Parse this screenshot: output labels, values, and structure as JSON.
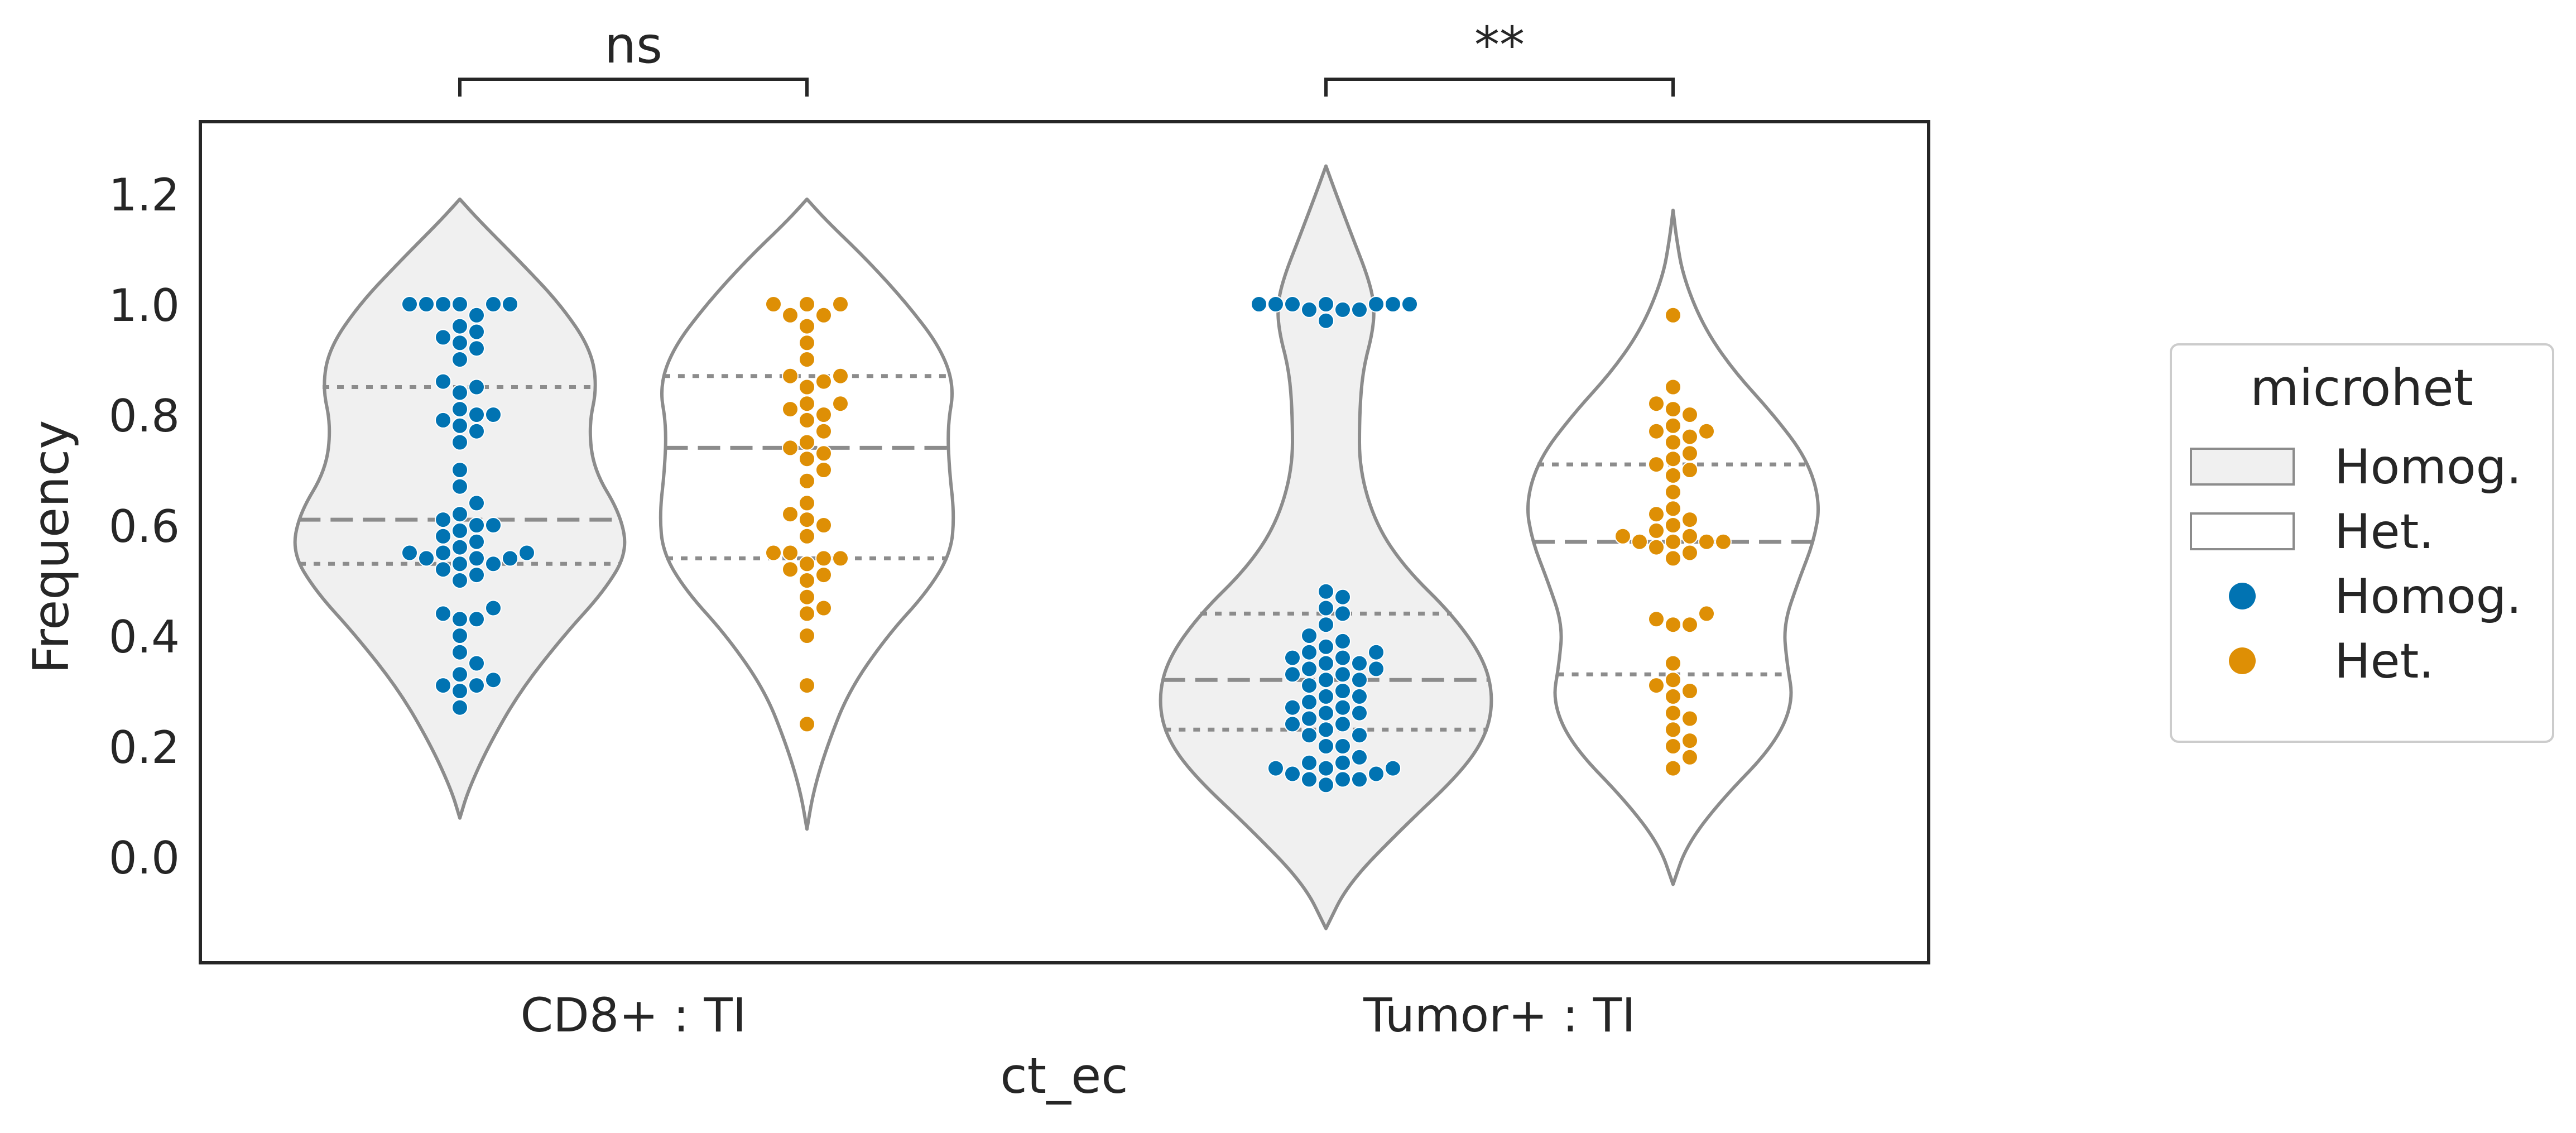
{
  "chart_data": {
    "type": "violin",
    "xlabel": "ct_ec",
    "ylabel": "Frequency",
    "categories": [
      "CD8+ : TI",
      "Tumor+ : TI"
    ],
    "y_ticks": [
      "0.0",
      "0.2",
      "0.4",
      "0.6",
      "0.8",
      "1.0",
      "1.2"
    ],
    "ylim": [
      -0.2,
      1.33
    ],
    "grid": false,
    "legend": {
      "title": "microhet",
      "placement": "right",
      "entries": [
        {
          "label": "Homog.",
          "kind": "patch",
          "fill": "#f0f0f0"
        },
        {
          "label": "Het.",
          "kind": "patch",
          "fill": "#ffffff"
        },
        {
          "label": "Homog.",
          "kind": "marker",
          "color": "#0173b2"
        },
        {
          "label": "Het.",
          "kind": "marker",
          "color": "#de8f05"
        }
      ]
    },
    "significance": [
      {
        "category": "CD8+ : TI",
        "label": "ns"
      },
      {
        "category": "Tumor+ : TI",
        "label": "**"
      }
    ],
    "series": [
      {
        "name": "Homog.",
        "color": "#0173b2",
        "violin_fill": "#f0f0f0",
        "groups": [
          {
            "category": "CD8+ : TI",
            "range": [
              0.07,
              1.19
            ],
            "quartiles": [
              0.53,
              0.61,
              0.85
            ],
            "density": [
              [
                0.07,
                0.0
              ],
              [
                0.12,
                0.05
              ],
              [
                0.2,
                0.17
              ],
              [
                0.3,
                0.36
              ],
              [
                0.4,
                0.62
              ],
              [
                0.48,
                0.86
              ],
              [
                0.55,
                1.0
              ],
              [
                0.62,
                0.96
              ],
              [
                0.7,
                0.8
              ],
              [
                0.78,
                0.77
              ],
              [
                0.85,
                0.82
              ],
              [
                0.92,
                0.78
              ],
              [
                1.0,
                0.6
              ],
              [
                1.08,
                0.35
              ],
              [
                1.15,
                0.12
              ],
              [
                1.19,
                0.0
              ]
            ],
            "points": [
              1.0,
              1.0,
              1.0,
              1.0,
              1.0,
              1.0,
              0.98,
              0.96,
              0.95,
              0.94,
              0.93,
              0.92,
              0.9,
              0.86,
              0.85,
              0.84,
              0.81,
              0.8,
              0.8,
              0.79,
              0.78,
              0.77,
              0.75,
              0.7,
              0.67,
              0.64,
              0.62,
              0.61,
              0.6,
              0.6,
              0.59,
              0.58,
              0.57,
              0.56,
              0.55,
              0.55,
              0.55,
              0.54,
              0.54,
              0.54,
              0.53,
              0.53,
              0.52,
              0.51,
              0.5,
              0.45,
              0.44,
              0.43,
              0.43,
              0.4,
              0.37,
              0.35,
              0.33,
              0.32,
              0.31,
              0.31,
              0.3,
              0.27
            ]
          },
          {
            "category": "Tumor+ : TI",
            "range": [
              -0.13,
              1.25
            ],
            "quartiles": [
              0.23,
              0.32,
              0.44
            ],
            "density": [
              [
                -0.13,
                0.0
              ],
              [
                -0.05,
                0.13
              ],
              [
                0.05,
                0.45
              ],
              [
                0.15,
                0.8
              ],
              [
                0.22,
                0.96
              ],
              [
                0.29,
                1.0
              ],
              [
                0.36,
                0.94
              ],
              [
                0.44,
                0.75
              ],
              [
                0.52,
                0.48
              ],
              [
                0.6,
                0.3
              ],
              [
                0.7,
                0.2
              ],
              [
                0.8,
                0.2
              ],
              [
                0.88,
                0.22
              ],
              [
                0.95,
                0.28
              ],
              [
                1.0,
                0.29
              ],
              [
                1.05,
                0.25
              ],
              [
                1.12,
                0.16
              ],
              [
                1.2,
                0.06
              ],
              [
                1.25,
                0.0
              ]
            ],
            "points": [
              1.0,
              1.0,
              1.0,
              1.0,
              1.0,
              1.0,
              1.0,
              0.99,
              0.99,
              0.99,
              0.97,
              0.48,
              0.47,
              0.45,
              0.44,
              0.42,
              0.4,
              0.39,
              0.38,
              0.37,
              0.37,
              0.36,
              0.36,
              0.35,
              0.35,
              0.34,
              0.34,
              0.33,
              0.33,
              0.32,
              0.32,
              0.31,
              0.3,
              0.29,
              0.29,
              0.28,
              0.27,
              0.27,
              0.26,
              0.26,
              0.25,
              0.24,
              0.24,
              0.23,
              0.22,
              0.22,
              0.2,
              0.2,
              0.18,
              0.17,
              0.17,
              0.16,
              0.16,
              0.16,
              0.15,
              0.15,
              0.14,
              0.14,
              0.14,
              0.13
            ]
          }
        ]
      },
      {
        "name": "Het.",
        "color": "#de8f05",
        "violin_fill": "#ffffff",
        "groups": [
          {
            "category": "CD8+ : TI",
            "range": [
              0.05,
              1.19
            ],
            "quartiles": [
              0.54,
              0.74,
              0.87
            ],
            "density": [
              [
                0.05,
                0.0
              ],
              [
                0.12,
                0.04
              ],
              [
                0.2,
                0.12
              ],
              [
                0.3,
                0.25
              ],
              [
                0.4,
                0.48
              ],
              [
                0.48,
                0.72
              ],
              [
                0.55,
                0.86
              ],
              [
                0.62,
                0.88
              ],
              [
                0.7,
                0.85
              ],
              [
                0.78,
                0.84
              ],
              [
                0.85,
                0.88
              ],
              [
                0.92,
                0.8
              ],
              [
                1.0,
                0.6
              ],
              [
                1.08,
                0.36
              ],
              [
                1.15,
                0.12
              ],
              [
                1.19,
                0.0
              ]
            ],
            "points": [
              1.0,
              1.0,
              1.0,
              0.98,
              0.98,
              0.96,
              0.93,
              0.9,
              0.87,
              0.87,
              0.86,
              0.85,
              0.82,
              0.82,
              0.81,
              0.8,
              0.79,
              0.77,
              0.75,
              0.74,
              0.73,
              0.72,
              0.7,
              0.68,
              0.64,
              0.62,
              0.61,
              0.6,
              0.58,
              0.55,
              0.55,
              0.54,
              0.54,
              0.53,
              0.52,
              0.51,
              0.5,
              0.47,
              0.45,
              0.44,
              0.4,
              0.31,
              0.24
            ]
          },
          {
            "category": "Tumor+ : TI",
            "range": [
              -0.05,
              1.17
            ],
            "quartiles": [
              0.33,
              0.57,
              0.71
            ],
            "density": [
              [
                -0.05,
                0.0
              ],
              [
                0.02,
                0.08
              ],
              [
                0.1,
                0.28
              ],
              [
                0.2,
                0.6
              ],
              [
                0.28,
                0.72
              ],
              [
                0.35,
                0.68
              ],
              [
                0.42,
                0.66
              ],
              [
                0.5,
                0.75
              ],
              [
                0.57,
                0.84
              ],
              [
                0.64,
                0.88
              ],
              [
                0.72,
                0.8
              ],
              [
                0.8,
                0.6
              ],
              [
                0.88,
                0.36
              ],
              [
                0.96,
                0.18
              ],
              [
                1.05,
                0.06
              ],
              [
                1.12,
                0.02
              ],
              [
                1.17,
                0.0
              ]
            ],
            "points": [
              0.98,
              0.85,
              0.82,
              0.81,
              0.8,
              0.78,
              0.77,
              0.77,
              0.76,
              0.75,
              0.73,
              0.72,
              0.71,
              0.7,
              0.69,
              0.66,
              0.63,
              0.62,
              0.61,
              0.6,
              0.59,
              0.58,
              0.58,
              0.57,
              0.57,
              0.57,
              0.57,
              0.56,
              0.55,
              0.54,
              0.44,
              0.43,
              0.42,
              0.42,
              0.35,
              0.32,
              0.31,
              0.3,
              0.29,
              0.26,
              0.25,
              0.23,
              0.21,
              0.2,
              0.18,
              0.16
            ]
          }
        ]
      }
    ]
  }
}
